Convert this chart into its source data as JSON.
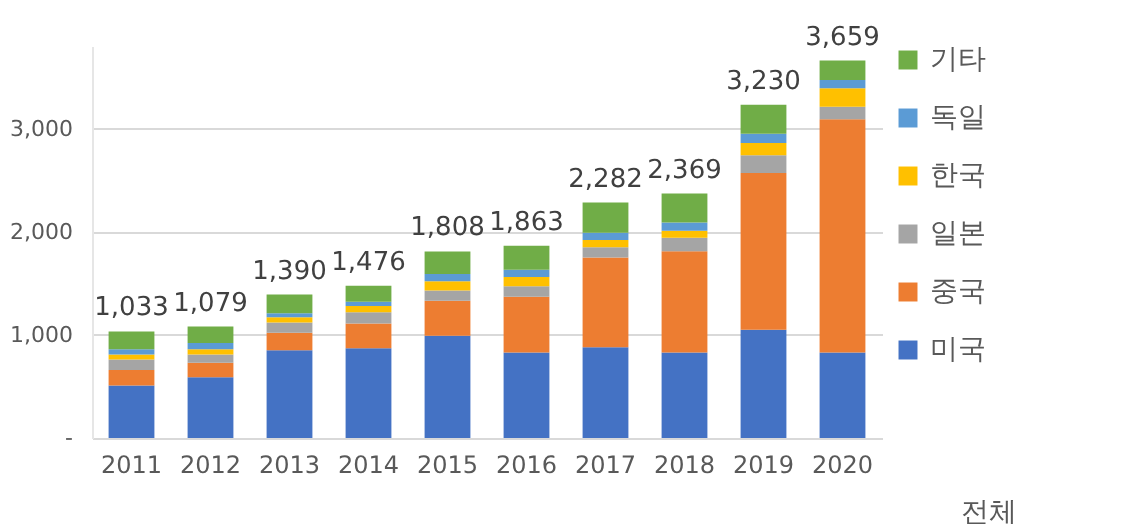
{
  "chart_data": {
    "type": "bar",
    "stacked": true,
    "categories": [
      "2011",
      "2012",
      "2013",
      "2014",
      "2015",
      "2016",
      "2017",
      "2018",
      "2019",
      "2020"
    ],
    "series": [
      {
        "name": "미국",
        "color": "#4472c4",
        "values": [
          510,
          590,
          850,
          870,
          990,
          830,
          880,
          830,
          1050,
          830
        ]
      },
      {
        "name": "중국",
        "color": "#ed7d31",
        "values": [
          150,
          140,
          170,
          240,
          340,
          540,
          870,
          980,
          1520,
          2260
        ]
      },
      {
        "name": "일본",
        "color": "#a5a5a5",
        "values": [
          100,
          80,
          100,
          110,
          100,
          100,
          100,
          130,
          170,
          120
        ]
      },
      {
        "name": "한국",
        "color": "#ffc000",
        "values": [
          50,
          50,
          50,
          60,
          90,
          90,
          70,
          70,
          120,
          180
        ]
      },
      {
        "name": "독일",
        "color": "#5b9bd5",
        "values": [
          50,
          60,
          40,
          40,
          70,
          70,
          70,
          80,
          90,
          80
        ]
      },
      {
        "name": "기타",
        "color": "#70ad47",
        "values": [
          173,
          160,
          180,
          156,
          218,
          233,
          292,
          279,
          280,
          189
        ]
      }
    ],
    "totals": [
      "1,033",
      "1,079",
      "1,390",
      "1,476",
      "1,808",
      "1,863",
      "2,282",
      "2,369",
      "3,230",
      "3,659"
    ],
    "xlabel": "전체",
    "ylim": [
      0,
      3800
    ],
    "yticks": [
      {
        "value": 0,
        "label": "-"
      },
      {
        "value": 1000,
        "label": "1,000"
      },
      {
        "value": 2000,
        "label": "2,000"
      },
      {
        "value": 3000,
        "label": "3,000"
      }
    ],
    "grid": "y",
    "legend": "right"
  }
}
